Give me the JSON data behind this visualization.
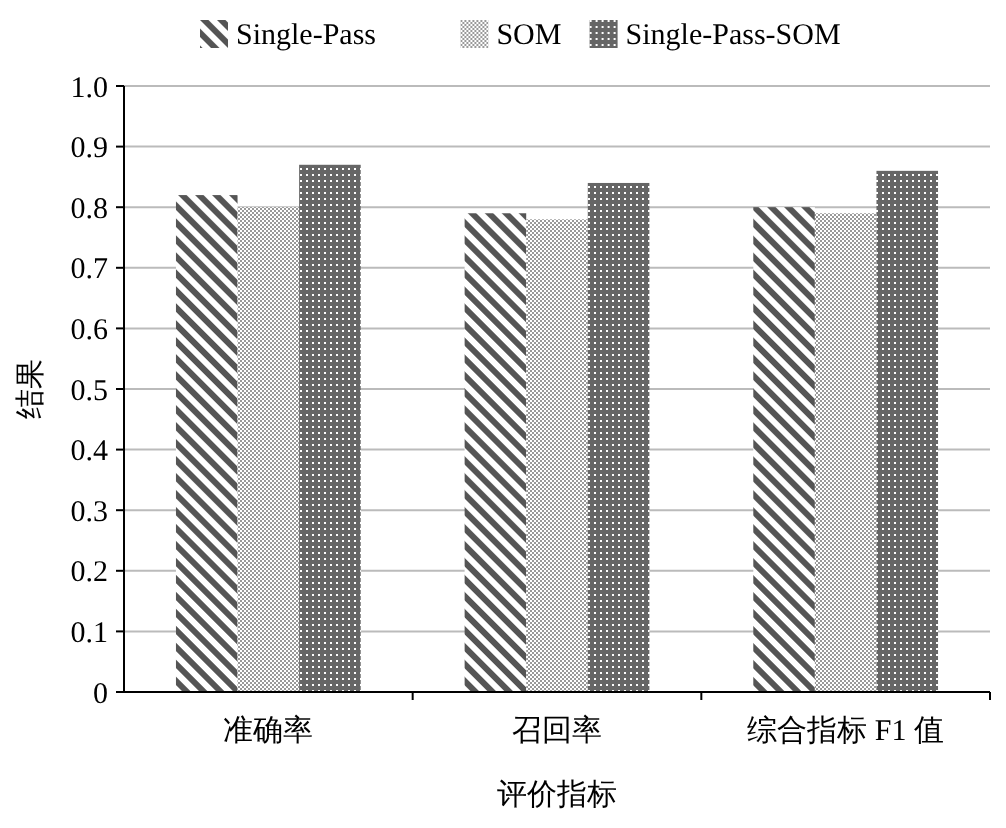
{
  "chart_data": {
    "type": "bar",
    "xlabel": "评价指标",
    "ylabel": "结果",
    "categories": [
      "准确率",
      "召回率",
      "综合指标 F1 值"
    ],
    "series": [
      {
        "name": "Single-Pass",
        "color": "#555555",
        "values": [
          0.82,
          0.79,
          0.8
        ]
      },
      {
        "name": "SOM",
        "color": "#999999",
        "values": [
          0.8,
          0.78,
          0.79
        ]
      },
      {
        "name": "Single-Pass-SOM",
        "color": "#666666",
        "values": [
          0.87,
          0.84,
          0.86
        ]
      }
    ],
    "ylim": [
      0,
      1
    ],
    "yticks": [
      0,
      0.1,
      0.2,
      0.3,
      0.4,
      0.5,
      0.6,
      0.7,
      0.8,
      0.9,
      {
        "value": 1,
        "label": "1.0"
      }
    ],
    "grid": "y",
    "legend": "top"
  }
}
